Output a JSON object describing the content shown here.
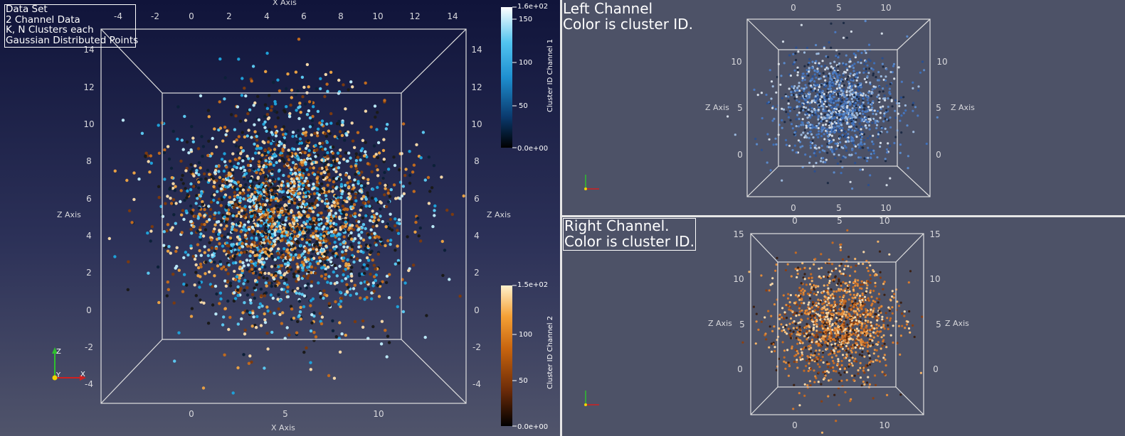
{
  "main_view": {
    "annotation": [
      "Data Set",
      "2 Channel Data",
      "K, N Clusters each",
      "Gaussian Distributed Points"
    ],
    "x_axis_title": "X Axis",
    "z_axis_title": "Z Axis",
    "top_x_ticks": [
      "-4",
      "-2",
      "0",
      "2",
      "4",
      "6",
      "8",
      "10",
      "12",
      "14"
    ],
    "bottom_x_ticks": [
      "0",
      "5",
      "10"
    ],
    "left_z_ticks": [
      "14",
      "12",
      "10",
      "8",
      "6",
      "4",
      "2",
      "0",
      "-2",
      "-4"
    ],
    "right_z_ticks": [
      "14",
      "12",
      "10",
      "8",
      "6",
      "4",
      "2",
      "0",
      "-2",
      "-4"
    ],
    "colorbar1": {
      "title": "Cluster ID Channel 1",
      "labels": [
        "1.6e+02",
        "150",
        "100",
        "50",
        "0.0e+00"
      ],
      "colors": [
        "#000000",
        "#0a3a6e",
        "#1e8fd0",
        "#52c4f0",
        "#ffffff"
      ]
    },
    "colorbar2": {
      "title": "Cluster ID Channel 2",
      "labels": [
        "1.5e+02",
        "100",
        "50",
        "0.0e+00"
      ],
      "colors": [
        "#000000",
        "#6a2a08",
        "#c8640e",
        "#f5a035",
        "#fff1cc"
      ]
    },
    "orientation_axes": [
      "Z",
      "Y",
      "X"
    ]
  },
  "left_view": {
    "annotation": [
      "Left Channel",
      "Color is cluster ID."
    ],
    "z_axis_title": "Z Axis",
    "top_ticks": [
      "0",
      "5",
      "10"
    ],
    "bottom_ticks": [
      "0",
      "5",
      "10"
    ],
    "left_ticks": [
      "10",
      "5",
      "0"
    ],
    "right_ticks": [
      "10",
      "5",
      "0"
    ],
    "point_colors": [
      "#2b4f8e",
      "#3e6fb8",
      "#5a89c9",
      "#9cb9dd",
      "#d2dbe6",
      "#1d2b45",
      "#4a78c0"
    ]
  },
  "right_view": {
    "annotation": [
      "Right Channel.",
      "Color is cluster ID."
    ],
    "z_axis_title": "Z Axis",
    "top_ticks": [
      "0",
      "5",
      "10"
    ],
    "bottom_ticks": [
      "0",
      "10"
    ],
    "left_ticks": [
      "15",
      "10",
      "5",
      "0"
    ],
    "right_ticks": [
      "15",
      "10",
      "5",
      "0"
    ],
    "point_colors": [
      "#c46a22",
      "#e08c3c",
      "#f1b46a",
      "#f7d8a8",
      "#8a3f12",
      "#3b2013",
      "#d97a2c"
    ]
  },
  "main_point_colors": [
    "#1fa0d8",
    "#5bc6ee",
    "#b9e6f5",
    "#e7a044",
    "#c06a1e",
    "#1a1a1a",
    "#7a3a10",
    "#0c2038",
    "#f2d6a8"
  ]
}
